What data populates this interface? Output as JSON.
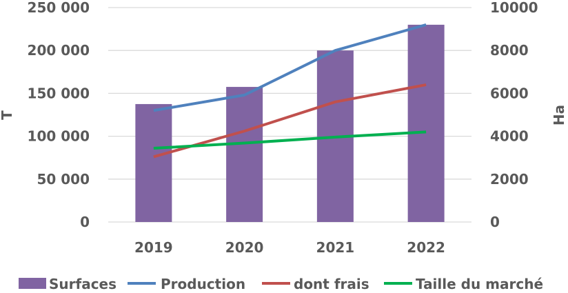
{
  "chart_data": {
    "type": "bar+line",
    "title": "",
    "categories": [
      "2019",
      "2020",
      "2021",
      "2022"
    ],
    "y_left": {
      "label": "T",
      "range": [
        0,
        250000
      ],
      "ticks": [
        0,
        50000,
        100000,
        150000,
        200000,
        250000
      ],
      "tick_labels": [
        "0",
        "50 000",
        "100 000",
        "150 000",
        "200 000",
        "250 000"
      ]
    },
    "y_right": {
      "label": "Ha",
      "range": [
        0,
        10000
      ],
      "ticks": [
        0,
        2000,
        4000,
        6000,
        8000,
        10000
      ],
      "tick_labels": [
        "0",
        "2000",
        "4000",
        "6000",
        "8000",
        "10000"
      ]
    },
    "grid": true,
    "legend_position": "bottom",
    "series": [
      {
        "name": "Surfaces",
        "kind": "bar",
        "axis": "right",
        "color": "#8064A2",
        "values": [
          5500,
          6300,
          8000,
          9200
        ]
      },
      {
        "name": "Production",
        "kind": "line",
        "axis": "left",
        "color": "#4F81BD",
        "values": [
          130000,
          148000,
          200000,
          230000
        ]
      },
      {
        "name": "dont frais",
        "kind": "line",
        "axis": "left",
        "color": "#C0504D",
        "values": [
          76000,
          106000,
          140000,
          160000
        ]
      },
      {
        "name": "Taille du marché",
        "kind": "line",
        "axis": "left",
        "color": "#00B050",
        "values": [
          86000,
          92000,
          99000,
          105000
        ]
      }
    ]
  }
}
